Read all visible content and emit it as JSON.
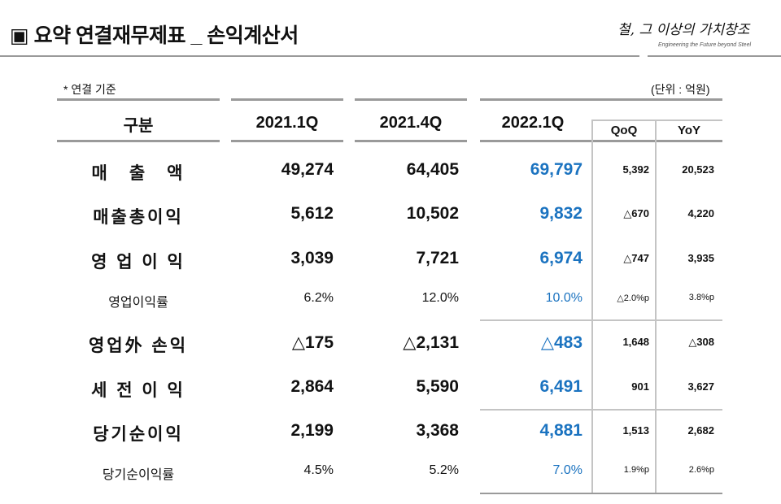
{
  "header": {
    "title": "▣ 요약 연결재무제표 _ 손익계산서",
    "logo_text": "철, 그 이상의 가치창조",
    "logo_tagline": "Engineering the Future beyond Steel"
  },
  "note": "* 연결 기준",
  "unit": "(단위 : 억원)",
  "columns": {
    "label": "구분",
    "c1": "2021.1Q",
    "c2": "2021.4Q",
    "c3": "2022.1Q",
    "qoq": "QoQ",
    "yoy": "YoY"
  },
  "accent_color": "#1b73c0",
  "rows": [
    {
      "label": "매　출　액",
      "c1": "49,274",
      "c2": "64,405",
      "c3": "69,797",
      "qoq": "5,392",
      "yoy": "20,523",
      "type": "big"
    },
    {
      "label": "매출총이익",
      "c1": "5,612",
      "c2": "10,502",
      "c3": "9,832",
      "qoq": "△670",
      "yoy": "4,220",
      "type": "big"
    },
    {
      "label": "영 업 이 익",
      "c1": "3,039",
      "c2": "7,721",
      "c3": "6,974",
      "qoq": "△747",
      "yoy": "3,935",
      "type": "big"
    },
    {
      "label": "영업이익률",
      "c1": "6.2%",
      "c2": "12.0%",
      "c3": "10.0%",
      "qoq": "△2.0%p",
      "yoy": "3.8%p",
      "type": "small"
    },
    {
      "label": "영업外 손익",
      "c1": "△175",
      "c2": "△2,131",
      "c3": "△483",
      "qoq": "1,648",
      "yoy": "△308",
      "type": "big"
    },
    {
      "label": "세 전 이 익",
      "c1": "2,864",
      "c2": "5,590",
      "c3": "6,491",
      "qoq": "901",
      "yoy": "3,627",
      "type": "big"
    },
    {
      "label": "당기순이익",
      "c1": "2,199",
      "c2": "3,368",
      "c3": "4,881",
      "qoq": "1,513",
      "yoy": "2,682",
      "type": "big"
    },
    {
      "label": "당기순이익률",
      "c1": "4.5%",
      "c2": "5.2%",
      "c3": "7.0%",
      "qoq": "1.9%p",
      "yoy": "2.6%p",
      "type": "small"
    }
  ]
}
